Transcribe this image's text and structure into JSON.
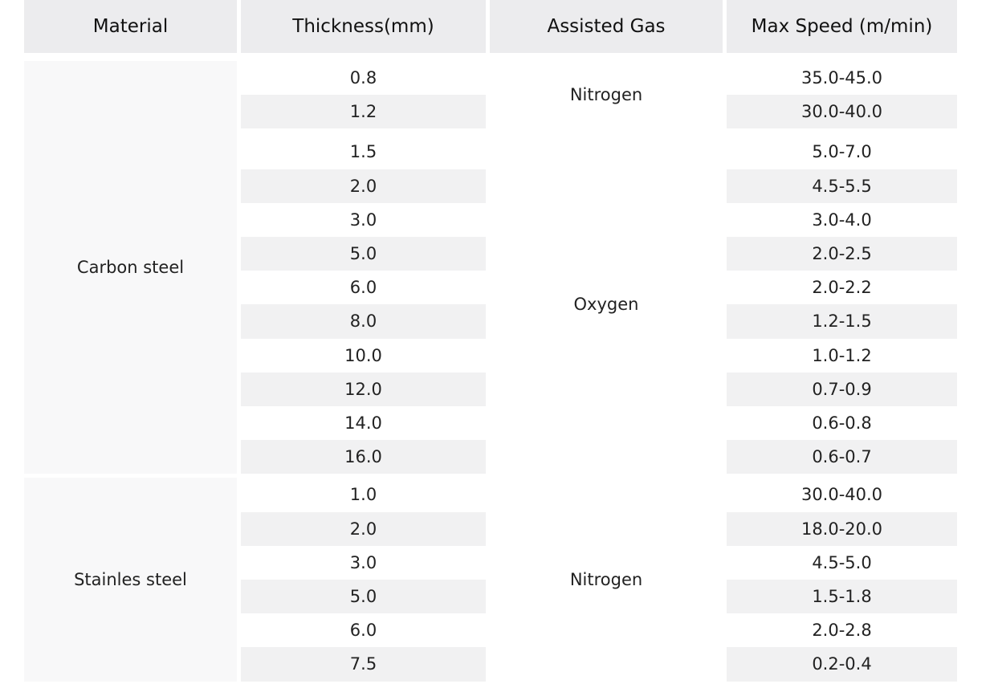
{
  "header": [
    "Material",
    "Thickness(mm)",
    "Assisted Gas",
    "Max Speed (m/min)"
  ],
  "materials": [
    {
      "name": "Carbon steel",
      "gases": [
        {
          "gas": "Nitrogen",
          "rows": [
            [
              "0.8",
              "35.0-45.0"
            ],
            [
              "1.2",
              "30.0-40.0"
            ]
          ]
        },
        {
          "gas": "Oxygen",
          "rows": [
            [
              "1.5",
              "5.0-7.0"
            ],
            [
              "2.0",
              "4.5-5.5"
            ],
            [
              "3.0",
              "3.0-4.0"
            ],
            [
              "5.0",
              "2.0-2.5"
            ],
            [
              "6.0",
              "2.0-2.2"
            ],
            [
              "8.0",
              "1.2-1.5"
            ],
            [
              "10.0",
              "1.0-1.2"
            ],
            [
              "12.0",
              "0.7-0.9"
            ],
            [
              "14.0",
              "0.6-0.8"
            ],
            [
              "16.0",
              "0.6-0.7"
            ]
          ]
        }
      ]
    },
    {
      "name": "Stainles steel",
      "gases": [
        {
          "gas": "Nitrogen",
          "rows": [
            [
              "1.0",
              "30.0-40.0"
            ],
            [
              "2.0",
              "18.0-20.0"
            ],
            [
              "3.0",
              "4.5-5.0"
            ],
            [
              "5.0",
              "1.5-1.8"
            ],
            [
              "6.0",
              "2.0-2.8"
            ],
            [
              "7.5",
              "0.2-0.4"
            ]
          ]
        }
      ]
    }
  ]
}
